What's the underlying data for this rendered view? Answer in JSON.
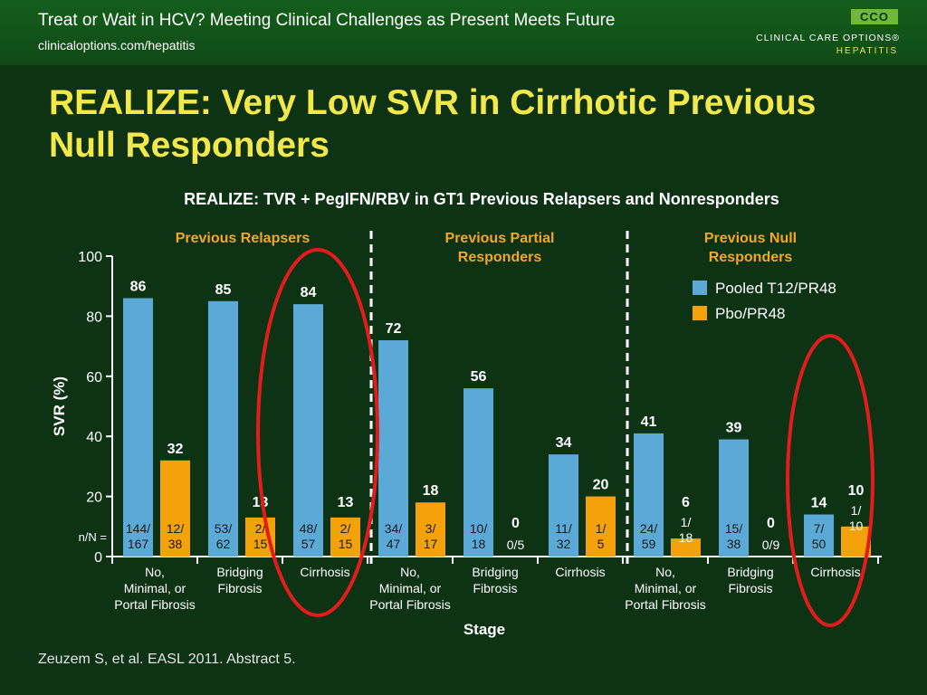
{
  "header": {
    "title": "Treat or Wait in HCV? Meeting Clinical Challenges as Present Meets Future",
    "url": "clinicaloptions.com/hepatitis",
    "logo_mark": "CCO",
    "logo_name": "CLINICAL CARE OPTIONS®",
    "logo_sub": "HEPATITIS"
  },
  "slide": {
    "title": "REALIZE: Very Low SVR in Cirrhotic Previous Null Responders"
  },
  "footer": {
    "citation": "Zeuzem S, et al. EASL 2011. Abstract 5."
  },
  "colors": {
    "background": "#0d3314",
    "title_yellow": "#f2e84a",
    "section_label": "#f5a623",
    "highlight_ring": "#e21b1b"
  },
  "chart_data": {
    "type": "bar",
    "title": "REALIZE: TVR + PegIFN/RBV in GT1 Previous Relapsers and Nonresponders",
    "ylabel": "SVR (%)",
    "xlabel": "Stage",
    "ylim": [
      0,
      100
    ],
    "yticks": [
      "0",
      "20",
      "40",
      "60",
      "80",
      "100"
    ],
    "nn_label": "n/N =",
    "legend_position": "top-right",
    "groups": [
      "Previous Relapsers",
      "Previous Partial Responders",
      "Previous Null Responders"
    ],
    "categories": [
      "No, Minimal, or Portal Fibrosis",
      "Bridging Fibrosis",
      "Cirrhosis",
      "No, Minimal, or Portal Fibrosis",
      "Bridging Fibrosis",
      "Cirrhosis",
      "No, Minimal, or Portal Fibrosis",
      "Bridging Fibrosis",
      "Cirrhosis"
    ],
    "series": [
      {
        "name": "Pooled T12/PR48",
        "color": "#5aa9d6",
        "values": [
          86,
          85,
          84,
          72,
          56,
          34,
          41,
          39,
          14
        ],
        "nn": [
          "144/167",
          "53/62",
          "48/57",
          "34/47",
          "10/18",
          "11/32",
          "24/59",
          "15/38",
          "7/50"
        ]
      },
      {
        "name": "Pbo/PR48",
        "color": "#f5a20a",
        "values": [
          32,
          13,
          13,
          18,
          0,
          20,
          6,
          0,
          10
        ],
        "nn": [
          "12/38",
          "2/15",
          "2/15",
          "3/17",
          "0/5",
          "1/5",
          "1/18",
          "0/9",
          "1/10"
        ]
      }
    ],
    "highlighted_categories": [
      2,
      8
    ]
  }
}
